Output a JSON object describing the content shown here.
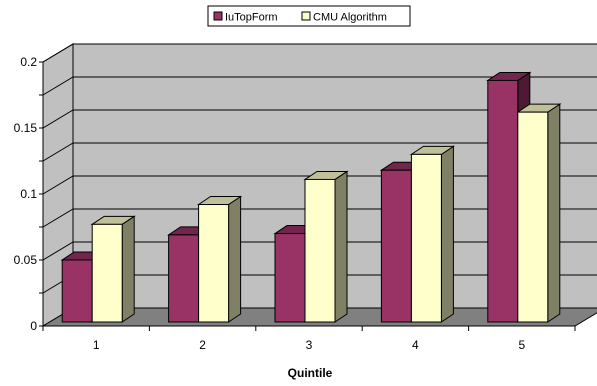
{
  "chart_data": {
    "type": "bar",
    "title": "",
    "xlabel": "Quintile",
    "ylabel": "",
    "categories": [
      "1",
      "2",
      "3",
      "4",
      "5"
    ],
    "series": [
      {
        "name": "IuTopForm",
        "values": [
          0.047,
          0.066,
          0.067,
          0.115,
          0.183
        ],
        "color": "#993366"
      },
      {
        "name": "CMU Algorithm",
        "values": [
          0.074,
          0.089,
          0.108,
          0.127,
          0.159
        ],
        "color": "#ffffcc"
      }
    ],
    "ylim": [
      0,
      0.2
    ],
    "yticks": [
      0,
      0.05,
      0.1,
      0.15,
      0.2
    ],
    "ytick_labels": [
      "0",
      "0.05",
      "0.1",
      "0.15",
      "0.2"
    ],
    "grid": true,
    "legend_position": "top-center",
    "wall_color": "#c0c0c0",
    "floor_color": "#808080"
  }
}
